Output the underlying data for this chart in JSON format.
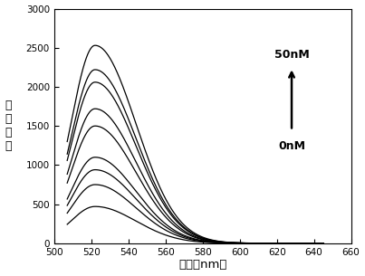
{
  "title": "",
  "xlabel": "波长（nm）",
  "ylabel": "荧光强度",
  "xlim": [
    500,
    660
  ],
  "ylim": [
    0,
    3000
  ],
  "xticks": [
    500,
    520,
    540,
    560,
    580,
    600,
    620,
    640,
    660
  ],
  "yticks": [
    0,
    500,
    1000,
    1500,
    2000,
    2500,
    3000
  ],
  "peak_wavelength": 522,
  "peak_values": [
    470,
    750,
    940,
    1100,
    1500,
    1720,
    2060,
    2220,
    2530
  ],
  "start_wavelength": 507,
  "end_wavelength": 645,
  "annotation_50nM": "50nM",
  "annotation_0nM": "0nM",
  "line_color": "black",
  "background_color": "white",
  "figsize": [
    4.03,
    3.05
  ],
  "dpi": 100
}
